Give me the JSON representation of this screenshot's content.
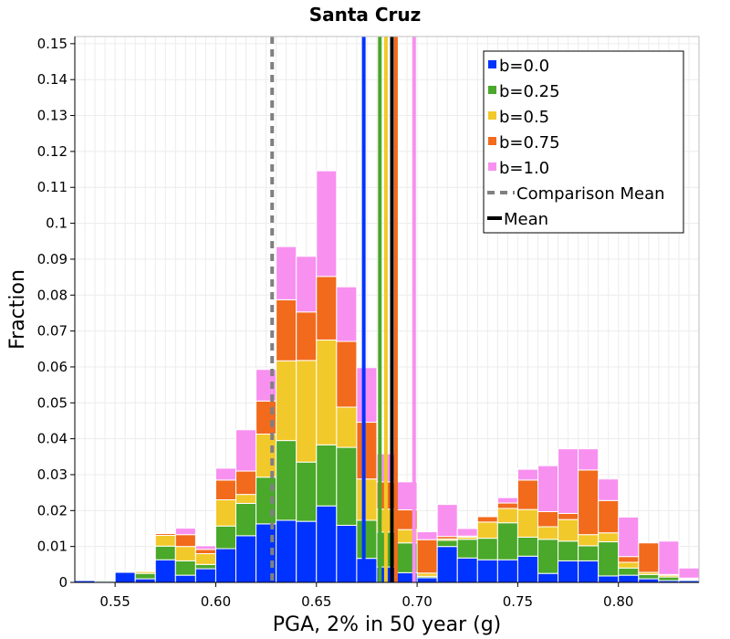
{
  "chart_data": {
    "type": "bar",
    "stacked": true,
    "title": "Santa Cruz",
    "xlabel": "PGA, 2% in 50 year (g)",
    "ylabel": "Fraction",
    "xlim": [
      0.53,
      0.84
    ],
    "ylim": [
      0,
      0.152
    ],
    "bin_width": 0.01,
    "xticks": [
      0.55,
      0.6,
      0.65,
      0.7,
      0.75,
      0.8
    ],
    "xtick_labels": [
      "0.55",
      "0.60",
      "0.65",
      "0.70",
      "0.75",
      "0.80"
    ],
    "yticks": [
      0,
      0.01,
      0.02,
      0.03,
      0.04,
      0.05,
      0.06,
      0.07,
      0.08,
      0.09,
      0.1,
      0.11,
      0.12,
      0.13,
      0.14,
      0.15
    ],
    "ytick_labels": [
      "0",
      "0.01",
      "0.02",
      "0.03",
      "0.04",
      "0.05",
      "0.06",
      "0.07",
      "0.08",
      "0.09",
      "0.1",
      "0.11",
      "0.12",
      "0.13",
      "0.14",
      "0.15"
    ],
    "bin_centers": [
      0.535,
      0.545,
      0.555,
      0.565,
      0.575,
      0.585,
      0.595,
      0.605,
      0.615,
      0.625,
      0.635,
      0.645,
      0.655,
      0.665,
      0.675,
      0.685,
      0.695,
      0.705,
      0.715,
      0.725,
      0.735,
      0.745,
      0.755,
      0.765,
      0.775,
      0.785,
      0.795,
      0.805,
      0.815,
      0.825,
      0.835
    ],
    "series": [
      {
        "name": "b=0.0",
        "color": "#0033ff",
        "values": [
          0.0005,
          0.0003,
          0.0028,
          0.001,
          0.0063,
          0.002,
          0.0038,
          0.0094,
          0.013,
          0.0163,
          0.0173,
          0.017,
          0.0213,
          0.0159,
          0.0067,
          0.0043,
          0.0027,
          0.0013,
          0.01,
          0.0068,
          0.0063,
          0.0063,
          0.0073,
          0.0025,
          0.006,
          0.006,
          0.0018,
          0.002,
          0.001,
          0.0005,
          0.0005
        ]
      },
      {
        "name": "b=0.25",
        "color": "#4aa82a",
        "values": [
          0,
          0.0003,
          0,
          0.0015,
          0.0038,
          0.004,
          0.0012,
          0.0063,
          0.009,
          0.013,
          0.0222,
          0.0165,
          0.017,
          0.0217,
          0.0106,
          0.0097,
          0.0083,
          0.0004,
          0.0017,
          0.0052,
          0.006,
          0.0103,
          0.0053,
          0.0095,
          0.0055,
          0.0042,
          0.0095,
          0.002,
          0.0012,
          0.001,
          0.0003
        ]
      },
      {
        "name": "b=0.5",
        "color": "#f2c92a",
        "values": [
          0,
          0,
          0,
          0.0005,
          0.003,
          0.004,
          0.003,
          0.0073,
          0.0025,
          0.012,
          0.0222,
          0.0283,
          0.0292,
          0.0112,
          0.0115,
          0.0064,
          0.0037,
          0.0009,
          0.0004,
          0.0006,
          0.0045,
          0.004,
          0.0077,
          0.0035,
          0.006,
          0.0031,
          0.0025,
          0.0016,
          0.0006,
          0.0005,
          0.0002
        ]
      },
      {
        "name": "b=0.75",
        "color": "#f26a1c",
        "values": [
          0,
          0,
          0,
          0,
          0.0005,
          0.0033,
          0.0012,
          0.0055,
          0.0065,
          0.0092,
          0.017,
          0.0135,
          0.0177,
          0.0183,
          0.0158,
          0.0076,
          0.0055,
          0.0093,
          0.0007,
          0.0003,
          0.0015,
          0.0015,
          0.0082,
          0.0042,
          0.0017,
          0.018,
          0.009,
          0.0016,
          0.0082,
          0.0002,
          0.0002
        ]
      },
      {
        "name": "b=1.0",
        "color": "#f890f0",
        "values": [
          0,
          0,
          0,
          0,
          0.0002,
          0.0018,
          0.001,
          0.0033,
          0.0115,
          0.0088,
          0.0148,
          0.0155,
          0.0294,
          0.0152,
          0.0152,
          0.0078,
          0.0078,
          0.0022,
          0.0089,
          0.0021,
          0,
          0.0015,
          0.003,
          0.0128,
          0.018,
          0.0059,
          0.006,
          0.011,
          0,
          0.0093,
          0.0028
        ]
      }
    ],
    "reference_lines": [
      {
        "name": "b=0.0",
        "x": 0.6735,
        "color": "#0033ff",
        "style": "solid"
      },
      {
        "name": "b=0.25",
        "x": 0.6815,
        "color": "#4aa82a",
        "style": "solid"
      },
      {
        "name": "b=0.5",
        "x": 0.6845,
        "color": "#f2c92a",
        "style": "solid"
      },
      {
        "name": "b=0.75",
        "x": 0.6895,
        "color": "#f26a1c",
        "style": "solid"
      },
      {
        "name": "b=1.0",
        "x": 0.6985,
        "color": "#f890f0",
        "style": "solid"
      },
      {
        "name": "Comparison Mean",
        "x": 0.628,
        "color": "#808080",
        "style": "dashed"
      },
      {
        "name": "Mean",
        "x": 0.6875,
        "color": "#000000",
        "style": "solid"
      }
    ],
    "legend": {
      "position": "top-right",
      "entries": [
        {
          "label": "b=0.0",
          "color": "#0033ff",
          "kind": "patch"
        },
        {
          "label": "b=0.25",
          "color": "#4aa82a",
          "kind": "patch"
        },
        {
          "label": "b=0.5",
          "color": "#f2c92a",
          "kind": "patch"
        },
        {
          "label": "b=0.75",
          "color": "#f26a1c",
          "kind": "patch"
        },
        {
          "label": "b=1.0",
          "color": "#f890f0",
          "kind": "patch"
        },
        {
          "label": "Comparison Mean",
          "color": "#808080",
          "kind": "dashed-line"
        },
        {
          "label": "Mean",
          "color": "#000000",
          "kind": "line"
        }
      ]
    },
    "grid": true
  }
}
